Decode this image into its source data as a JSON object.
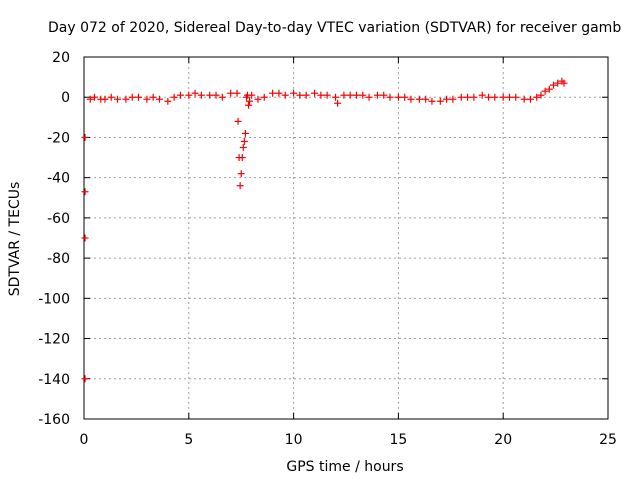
{
  "chart_data": {
    "type": "scatter",
    "title": "Day 072 of 2020, Sidereal Day-to-day VTEC variation (SDTVAR) for receiver gamb",
    "xlabel": "GPS time / hours",
    "ylabel": "SDTVAR / TECUs",
    "xlim": [
      0,
      25
    ],
    "ylim": [
      -160,
      20
    ],
    "x_ticks": [
      0,
      5,
      10,
      15,
      20,
      25
    ],
    "y_ticks": [
      20,
      0,
      -20,
      -40,
      -60,
      -80,
      -100,
      -120,
      -140,
      -160
    ],
    "x_tick_labels": [
      "0",
      "5",
      "10",
      "15",
      "20",
      "25"
    ],
    "y_tick_labels": [
      "20",
      "0",
      "-20",
      "-40",
      "-60",
      "-80",
      "-100",
      "-120",
      "-140",
      "-160"
    ],
    "grid": true,
    "marker": "plus",
    "series": [
      {
        "name": "SDTVAR",
        "color": "#ff0000",
        "x": [
          0.05,
          0.05,
          0.05,
          0.05,
          0.3,
          0.5,
          0.8,
          1.0,
          1.3,
          1.6,
          2.0,
          2.3,
          2.6,
          3.0,
          3.3,
          3.6,
          4.0,
          4.3,
          4.6,
          5.0,
          5.3,
          5.6,
          6.0,
          6.3,
          6.6,
          7.0,
          7.3,
          7.35,
          7.4,
          7.45,
          7.5,
          7.55,
          7.6,
          7.65,
          7.7,
          7.75,
          7.8,
          7.85,
          7.9,
          8.0,
          8.3,
          8.6,
          9.0,
          9.3,
          9.6,
          10.0,
          10.3,
          10.6,
          11.0,
          11.3,
          11.6,
          12.0,
          12.1,
          12.4,
          12.7,
          13.0,
          13.3,
          13.6,
          14.0,
          14.3,
          14.6,
          15.0,
          15.3,
          15.6,
          16.0,
          16.3,
          16.6,
          17.0,
          17.3,
          17.6,
          18.0,
          18.3,
          18.6,
          19.0,
          19.3,
          19.6,
          20.0,
          20.3,
          20.6,
          21.0,
          21.3,
          21.6,
          21.8,
          22.0,
          22.2,
          22.4,
          22.6,
          22.8,
          22.9
        ],
        "y": [
          -20,
          -47,
          -70,
          -140,
          -1,
          0,
          -1,
          -1,
          0,
          -1,
          -1,
          0,
          0,
          -1,
          0,
          -1,
          -2,
          0,
          1,
          1,
          2,
          1,
          1,
          1,
          0,
          2,
          2,
          -12,
          -30,
          -44,
          -38,
          -30,
          -25,
          -22,
          -18,
          0,
          1,
          -4,
          -2,
          1,
          -1,
          0,
          2,
          2,
          1,
          2,
          1,
          1,
          2,
          1,
          1,
          0,
          -3,
          1,
          1,
          1,
          1,
          0,
          1,
          1,
          0,
          0,
          0,
          -1,
          -1,
          -1,
          -2,
          -2,
          -1,
          -1,
          0,
          0,
          0,
          1,
          0,
          0,
          0,
          0,
          0,
          -1,
          -1,
          0,
          1,
          3,
          4,
          6,
          7,
          8,
          7
        ]
      }
    ]
  }
}
